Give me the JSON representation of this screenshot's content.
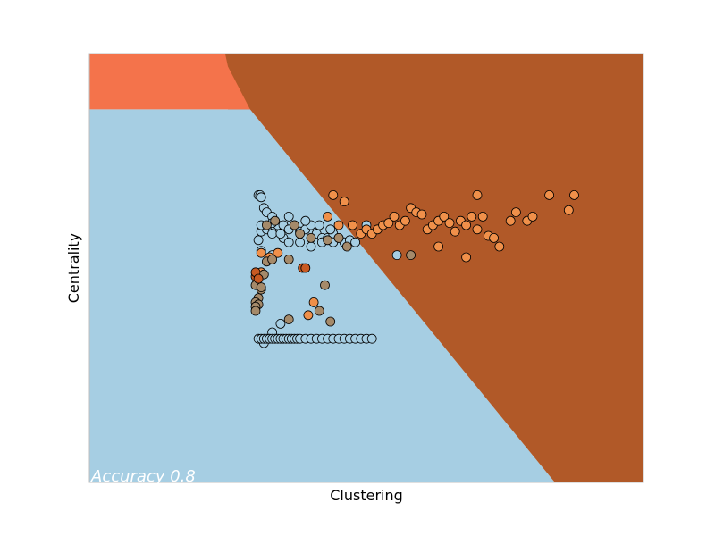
{
  "chart_data": {
    "type": "scatter",
    "title": "",
    "xlabel": "Clustering",
    "ylabel": "Centrality",
    "annotation": "Accuracy 0.8",
    "grid": false,
    "legend": "none",
    "xlim": [
      0,
      1
    ],
    "ylim": [
      0,
      1
    ],
    "colors": {
      "region_light_blue": "#a6cee3",
      "region_brown": "#b15928",
      "region_orange": "#f4734b",
      "point_light_blue": "#a6cee3",
      "point_orange": "#f0904a",
      "point_tan": "#a58a6a",
      "point_dark_orange": "#c85a22",
      "point_outline": "#000000"
    },
    "decision_regions": [
      {
        "class": "light_blue",
        "polygon": [
          [
            0,
            0
          ],
          [
            0,
            0.87
          ],
          [
            0.29,
            0.87
          ],
          [
            0.84,
            0
          ]
        ]
      },
      {
        "class": "brown",
        "polygon": [
          [
            0.84,
            0
          ],
          [
            0.29,
            0.87
          ],
          [
            0.25,
            0.87
          ],
          [
            0.245,
            1
          ],
          [
            1,
            1
          ],
          [
            1,
            0
          ]
        ]
      },
      {
        "class": "orange",
        "polygon": [
          [
            0,
            0.87
          ],
          [
            0.29,
            0.87
          ],
          [
            0.25,
            0.97
          ],
          [
            0.245,
            1
          ],
          [
            0,
            1
          ]
        ]
      }
    ],
    "series": [
      {
        "class": "light_blue",
        "points": [
          [
            0.305,
            0.67
          ],
          [
            0.308,
            0.67
          ],
          [
            0.31,
            0.665
          ],
          [
            0.315,
            0.64
          ],
          [
            0.32,
            0.63
          ],
          [
            0.33,
            0.62
          ],
          [
            0.34,
            0.6
          ],
          [
            0.35,
            0.6
          ],
          [
            0.36,
            0.59
          ],
          [
            0.37,
            0.6
          ],
          [
            0.38,
            0.585
          ],
          [
            0.39,
            0.59
          ],
          [
            0.4,
            0.6
          ],
          [
            0.41,
            0.58
          ],
          [
            0.42,
            0.57
          ],
          [
            0.43,
            0.57
          ],
          [
            0.44,
            0.58
          ],
          [
            0.45,
            0.57
          ],
          [
            0.46,
            0.56
          ],
          [
            0.47,
            0.565
          ],
          [
            0.48,
            0.56
          ],
          [
            0.31,
            0.585
          ],
          [
            0.32,
            0.59
          ],
          [
            0.33,
            0.58
          ],
          [
            0.35,
            0.57
          ],
          [
            0.36,
            0.56
          ],
          [
            0.38,
            0.56
          ],
          [
            0.4,
            0.55
          ],
          [
            0.42,
            0.56
          ],
          [
            0.44,
            0.56
          ],
          [
            0.305,
            0.565
          ],
          [
            0.31,
            0.6
          ],
          [
            0.33,
            0.605
          ],
          [
            0.345,
            0.58
          ],
          [
            0.36,
            0.62
          ],
          [
            0.39,
            0.61
          ],
          [
            0.415,
            0.6
          ],
          [
            0.435,
            0.59
          ],
          [
            0.31,
            0.54
          ],
          [
            0.33,
            0.53
          ],
          [
            0.5,
            0.6
          ],
          [
            0.555,
            0.53
          ],
          [
            0.315,
            0.325
          ],
          [
            0.345,
            0.37
          ],
          [
            0.33,
            0.35
          ]
        ]
      },
      {
        "class": "light_blue_bottom_row",
        "points": [
          [
            0.305,
            0.335
          ],
          [
            0.31,
            0.335
          ],
          [
            0.315,
            0.335
          ],
          [
            0.32,
            0.335
          ],
          [
            0.325,
            0.335
          ],
          [
            0.33,
            0.335
          ],
          [
            0.335,
            0.335
          ],
          [
            0.34,
            0.335
          ],
          [
            0.345,
            0.335
          ],
          [
            0.35,
            0.335
          ],
          [
            0.355,
            0.335
          ],
          [
            0.36,
            0.335
          ],
          [
            0.365,
            0.335
          ],
          [
            0.37,
            0.335
          ],
          [
            0.375,
            0.335
          ],
          [
            0.38,
            0.335
          ],
          [
            0.39,
            0.335
          ],
          [
            0.4,
            0.335
          ],
          [
            0.41,
            0.335
          ],
          [
            0.42,
            0.335
          ],
          [
            0.43,
            0.335
          ],
          [
            0.44,
            0.335
          ],
          [
            0.45,
            0.335
          ],
          [
            0.46,
            0.335
          ],
          [
            0.47,
            0.335
          ],
          [
            0.48,
            0.335
          ],
          [
            0.49,
            0.335
          ],
          [
            0.5,
            0.335
          ],
          [
            0.51,
            0.335
          ]
        ]
      },
      {
        "class": "orange",
        "points": [
          [
            0.44,
            0.67
          ],
          [
            0.46,
            0.655
          ],
          [
            0.475,
            0.6
          ],
          [
            0.49,
            0.58
          ],
          [
            0.5,
            0.59
          ],
          [
            0.51,
            0.58
          ],
          [
            0.52,
            0.59
          ],
          [
            0.53,
            0.6
          ],
          [
            0.54,
            0.605
          ],
          [
            0.55,
            0.62
          ],
          [
            0.56,
            0.6
          ],
          [
            0.57,
            0.61
          ],
          [
            0.58,
            0.64
          ],
          [
            0.59,
            0.63
          ],
          [
            0.6,
            0.625
          ],
          [
            0.61,
            0.59
          ],
          [
            0.62,
            0.6
          ],
          [
            0.63,
            0.61
          ],
          [
            0.64,
            0.62
          ],
          [
            0.65,
            0.605
          ],
          [
            0.66,
            0.585
          ],
          [
            0.67,
            0.61
          ],
          [
            0.68,
            0.6
          ],
          [
            0.69,
            0.62
          ],
          [
            0.7,
            0.59
          ],
          [
            0.71,
            0.62
          ],
          [
            0.72,
            0.575
          ],
          [
            0.73,
            0.57
          ],
          [
            0.74,
            0.55
          ],
          [
            0.76,
            0.61
          ],
          [
            0.77,
            0.63
          ],
          [
            0.79,
            0.61
          ],
          [
            0.8,
            0.62
          ],
          [
            0.83,
            0.67
          ],
          [
            0.875,
            0.67
          ],
          [
            0.865,
            0.635
          ],
          [
            0.7,
            0.67
          ],
          [
            0.63,
            0.55
          ],
          [
            0.68,
            0.525
          ],
          [
            0.31,
            0.535
          ],
          [
            0.325,
            0.525
          ],
          [
            0.34,
            0.535
          ],
          [
            0.31,
            0.49
          ],
          [
            0.405,
            0.42
          ],
          [
            0.395,
            0.39
          ],
          [
            0.43,
            0.62
          ],
          [
            0.45,
            0.6
          ]
        ]
      },
      {
        "class": "tan",
        "points": [
          [
            0.3,
            0.46
          ],
          [
            0.305,
            0.43
          ],
          [
            0.31,
            0.45
          ],
          [
            0.315,
            0.485
          ],
          [
            0.32,
            0.515
          ],
          [
            0.33,
            0.52
          ],
          [
            0.36,
            0.52
          ],
          [
            0.38,
            0.58
          ],
          [
            0.425,
            0.46
          ],
          [
            0.415,
            0.4
          ],
          [
            0.435,
            0.375
          ],
          [
            0.36,
            0.38
          ],
          [
            0.3,
            0.42
          ],
          [
            0.305,
            0.415
          ],
          [
            0.3,
            0.41
          ],
          [
            0.3,
            0.4
          ],
          [
            0.31,
            0.455
          ],
          [
            0.32,
            0.6
          ],
          [
            0.335,
            0.61
          ],
          [
            0.37,
            0.6
          ],
          [
            0.4,
            0.57
          ],
          [
            0.43,
            0.565
          ],
          [
            0.45,
            0.57
          ],
          [
            0.465,
            0.55
          ],
          [
            0.58,
            0.53
          ]
        ]
      },
      {
        "class": "dark_orange",
        "points": [
          [
            0.3,
            0.48
          ],
          [
            0.3,
            0.49
          ],
          [
            0.385,
            0.5
          ],
          [
            0.39,
            0.5
          ],
          [
            0.305,
            0.475
          ]
        ]
      }
    ]
  }
}
